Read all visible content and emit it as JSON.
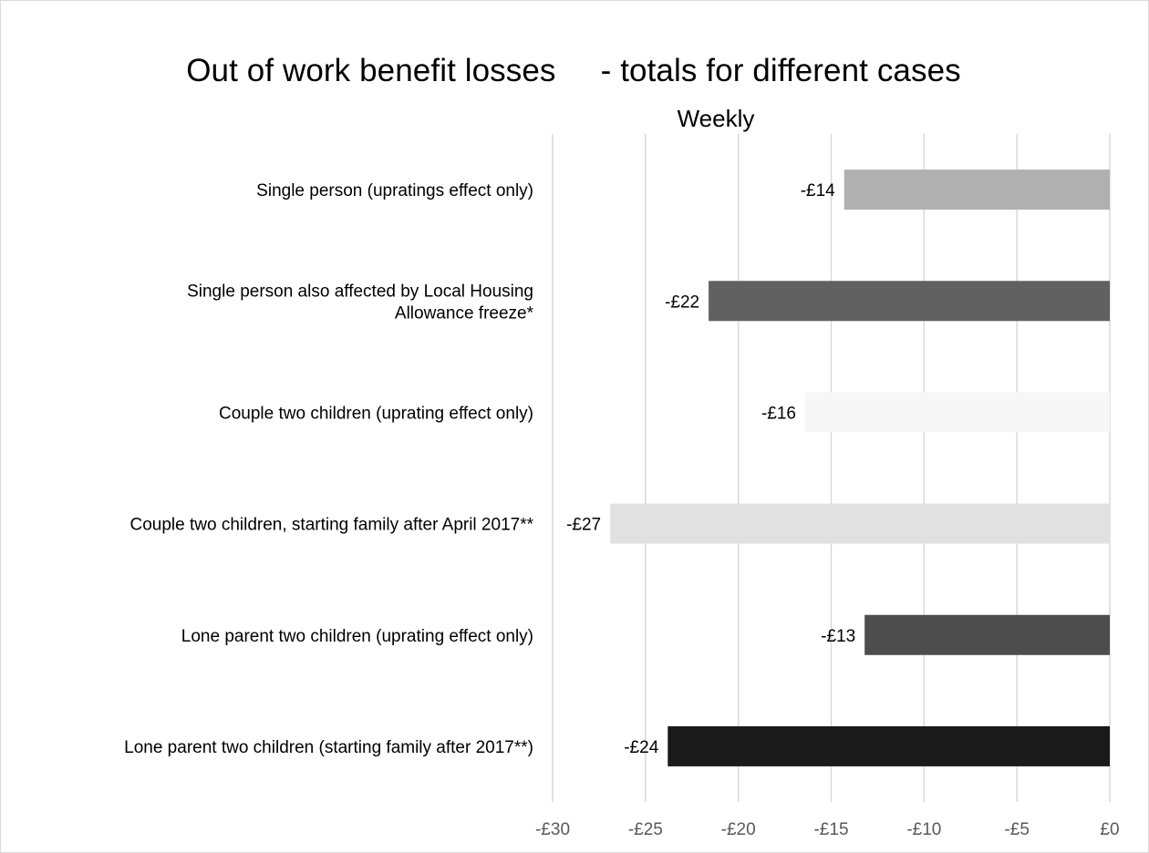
{
  "chart_data": {
    "type": "bar",
    "orientation": "horizontal",
    "title": "Out of work benefit losses     - totals for different cases",
    "subtitle": "Weekly",
    "categories": [
      [
        "Single person (upratings effect only)"
      ],
      [
        "Single person also affected by Local Housing",
        "Allowance freeze*"
      ],
      [
        "Couple two children (uprating effect only)"
      ],
      [
        "Couple two children, starting family after April 2017**"
      ],
      [
        "Lone parent two children (uprating effect only)"
      ],
      [
        "Lone parent two children (starting family after 2017**)"
      ]
    ],
    "values": [
      -14.3,
      -21.6,
      -16.4,
      -26.9,
      -13.2,
      -23.8
    ],
    "data_labels": [
      "-£14",
      "-£22",
      "-£16",
      "-£27",
      "-£13",
      "-£24"
    ],
    "bar_colors": [
      "#b0b0b0",
      "#616161",
      "#f7f7f7",
      "#e1e1e1",
      "#4d4d4d",
      "#1a1a1a"
    ],
    "x_ticks": [
      -30,
      -25,
      -20,
      -15,
      -10,
      -5,
      0
    ],
    "x_tick_labels": [
      "-£30",
      "-£25",
      "-£20",
      "-£15",
      "-£10",
      "-£5",
      "£0"
    ],
    "xlim": [
      -30,
      0
    ],
    "xlabel": "",
    "ylabel": "",
    "grid": "vertical",
    "gridline_color": "#d9d9d9",
    "legend": "none"
  }
}
